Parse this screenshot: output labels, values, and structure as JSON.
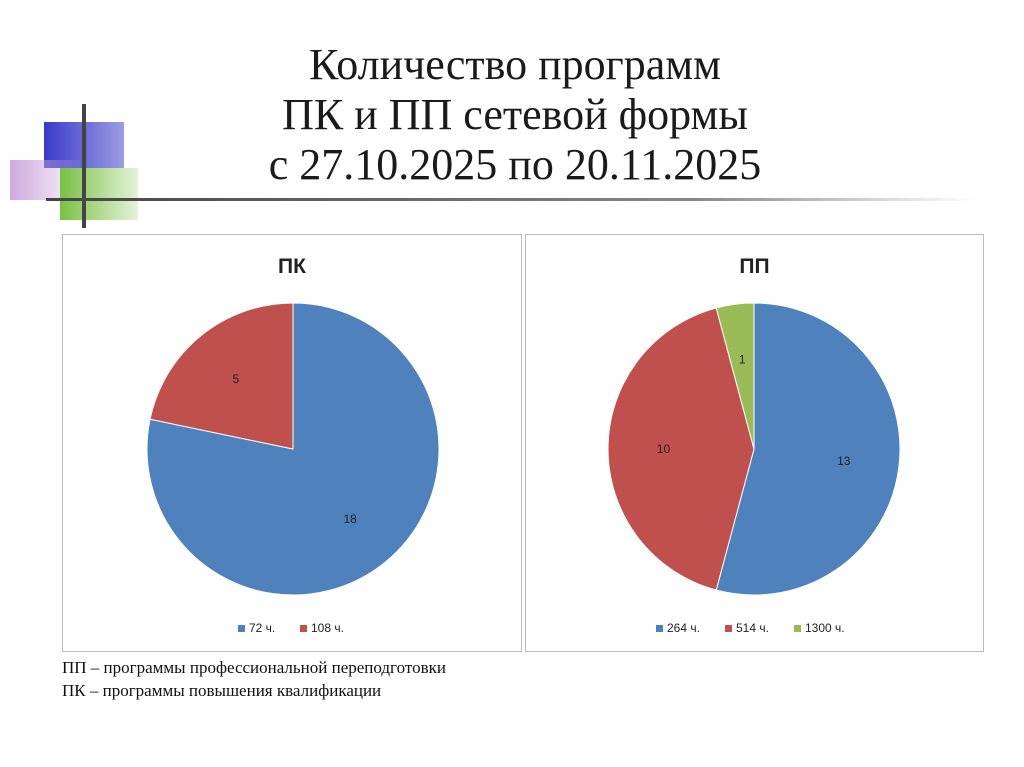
{
  "title": {
    "line1": "Количество программ",
    "line2": "ПК и ПП сетевой формы",
    "line3": "с 27.10.2025 по 20.11.2025"
  },
  "chart_data": [
    {
      "type": "pie",
      "title": "ПК",
      "categories": [
        "72 ч.",
        "108 ч."
      ],
      "values": [
        18,
        5
      ],
      "colors": [
        "#4f81bd",
        "#c0504d"
      ],
      "legend": "bottom"
    },
    {
      "type": "pie",
      "title": "ПП",
      "categories": [
        "264 ч.",
        "514 ч.",
        "1300 ч."
      ],
      "values": [
        13,
        10,
        1
      ],
      "colors": [
        "#4f81bd",
        "#c0504d",
        "#9bbb59"
      ],
      "legend": "bottom"
    }
  ],
  "footnotes": {
    "pp": "ПП – программы профессиональной переподготовки",
    "pk": "ПК – программы повышения квалификации"
  },
  "decor_colors": {
    "blue": "#3a3ac8",
    "violet": "#c9a0dc",
    "green": "#7ac143",
    "line": "#444444"
  }
}
